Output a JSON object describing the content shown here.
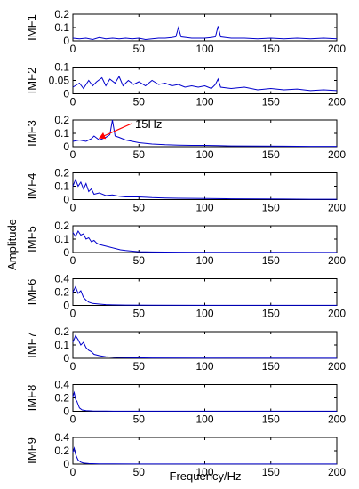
{
  "chart_data": {
    "type": "line",
    "xlabel": "Frequency/Hz",
    "ylabel": "Amplitude",
    "xlim": [
      0,
      200
    ],
    "x_ticks": [
      "0",
      "50",
      "100",
      "150",
      "200"
    ],
    "line_color": "#0000cc",
    "annotation_color": "#ff0000",
    "annotation": {
      "text": "15Hz",
      "panel": "IMF3",
      "x": 15,
      "y": 0.05
    },
    "panels": [
      {
        "name": "IMF1",
        "ylim": [
          0,
          0.2
        ],
        "yticks": [
          "0.2",
          "0.1",
          "0"
        ],
        "series": [
          [
            0,
            0.02
          ],
          [
            5,
            0.015
          ],
          [
            10,
            0.02
          ],
          [
            15,
            0.01
          ],
          [
            20,
            0.025
          ],
          [
            25,
            0.015
          ],
          [
            30,
            0.02
          ],
          [
            35,
            0.015
          ],
          [
            40,
            0.02
          ],
          [
            45,
            0.015
          ],
          [
            50,
            0.02
          ],
          [
            55,
            0.01
          ],
          [
            60,
            0.015
          ],
          [
            65,
            0.02
          ],
          [
            70,
            0.02
          ],
          [
            75,
            0.025
          ],
          [
            78,
            0.03
          ],
          [
            80,
            0.1
          ],
          [
            82,
            0.03
          ],
          [
            90,
            0.02
          ],
          [
            100,
            0.02
          ],
          [
            105,
            0.025
          ],
          [
            108,
            0.03
          ],
          [
            110,
            0.11
          ],
          [
            112,
            0.03
          ],
          [
            120,
            0.02
          ],
          [
            130,
            0.02
          ],
          [
            140,
            0.015
          ],
          [
            150,
            0.02
          ],
          [
            160,
            0.015
          ],
          [
            170,
            0.02
          ],
          [
            180,
            0.015
          ],
          [
            190,
            0.02
          ],
          [
            200,
            0.015
          ]
        ]
      },
      {
        "name": "IMF2",
        "ylim": [
          0,
          0.1
        ],
        "yticks": [
          "0.1",
          "0.05",
          "0"
        ],
        "series": [
          [
            0,
            0.025
          ],
          [
            5,
            0.04
          ],
          [
            8,
            0.02
          ],
          [
            12,
            0.05
          ],
          [
            15,
            0.03
          ],
          [
            18,
            0.045
          ],
          [
            22,
            0.06
          ],
          [
            25,
            0.03
          ],
          [
            28,
            0.055
          ],
          [
            32,
            0.04
          ],
          [
            35,
            0.065
          ],
          [
            38,
            0.03
          ],
          [
            42,
            0.05
          ],
          [
            46,
            0.035
          ],
          [
            50,
            0.045
          ],
          [
            55,
            0.03
          ],
          [
            60,
            0.05
          ],
          [
            65,
            0.035
          ],
          [
            70,
            0.04
          ],
          [
            75,
            0.03
          ],
          [
            80,
            0.035
          ],
          [
            85,
            0.025
          ],
          [
            90,
            0.03
          ],
          [
            95,
            0.025
          ],
          [
            100,
            0.03
          ],
          [
            105,
            0.02
          ],
          [
            108,
            0.035
          ],
          [
            110,
            0.055
          ],
          [
            112,
            0.025
          ],
          [
            120,
            0.02
          ],
          [
            130,
            0.025
          ],
          [
            140,
            0.015
          ],
          [
            150,
            0.02
          ],
          [
            160,
            0.015
          ],
          [
            170,
            0.018
          ],
          [
            180,
            0.012
          ],
          [
            190,
            0.015
          ],
          [
            200,
            0.012
          ]
        ]
      },
      {
        "name": "IMF3",
        "ylim": [
          0,
          0.2
        ],
        "yticks": [
          "0.2",
          "0.1",
          "0"
        ],
        "series": [
          [
            0,
            0.04
          ],
          [
            5,
            0.05
          ],
          [
            10,
            0.04
          ],
          [
            14,
            0.06
          ],
          [
            16,
            0.08
          ],
          [
            20,
            0.05
          ],
          [
            25,
            0.07
          ],
          [
            28,
            0.09
          ],
          [
            30,
            0.2
          ],
          [
            32,
            0.08
          ],
          [
            35,
            0.07
          ],
          [
            40,
            0.05
          ],
          [
            45,
            0.04
          ],
          [
            50,
            0.03
          ],
          [
            55,
            0.025
          ],
          [
            60,
            0.02
          ],
          [
            70,
            0.015
          ],
          [
            80,
            0.012
          ],
          [
            90,
            0.01
          ],
          [
            100,
            0.01
          ],
          [
            110,
            0.008
          ],
          [
            120,
            0.006
          ],
          [
            140,
            0.005
          ],
          [
            160,
            0.004
          ],
          [
            180,
            0.003
          ],
          [
            200,
            0.003
          ]
        ]
      },
      {
        "name": "IMF4",
        "ylim": [
          0,
          0.2
        ],
        "yticks": [
          "0.2",
          "0.1",
          "0"
        ],
        "series": [
          [
            0,
            0.1
          ],
          [
            2,
            0.15
          ],
          [
            4,
            0.1
          ],
          [
            6,
            0.13
          ],
          [
            8,
            0.08
          ],
          [
            10,
            0.12
          ],
          [
            12,
            0.06
          ],
          [
            14,
            0.08
          ],
          [
            16,
            0.04
          ],
          [
            20,
            0.05
          ],
          [
            25,
            0.03
          ],
          [
            30,
            0.035
          ],
          [
            35,
            0.025
          ],
          [
            40,
            0.02
          ],
          [
            50,
            0.02
          ],
          [
            60,
            0.015
          ],
          [
            70,
            0.012
          ],
          [
            80,
            0.01
          ],
          [
            100,
            0.008
          ],
          [
            120,
            0.006
          ],
          [
            140,
            0.005
          ],
          [
            160,
            0.004
          ],
          [
            180,
            0.003
          ],
          [
            200,
            0.003
          ]
        ]
      },
      {
        "name": "IMF5",
        "ylim": [
          0,
          0.2
        ],
        "yticks": [
          "0.2",
          "0.1",
          "0"
        ],
        "series": [
          [
            0,
            0.15
          ],
          [
            2,
            0.12
          ],
          [
            4,
            0.16
          ],
          [
            6,
            0.13
          ],
          [
            8,
            0.14
          ],
          [
            10,
            0.1
          ],
          [
            12,
            0.11
          ],
          [
            14,
            0.08
          ],
          [
            16,
            0.09
          ],
          [
            18,
            0.07
          ],
          [
            20,
            0.06
          ],
          [
            24,
            0.05
          ],
          [
            28,
            0.04
          ],
          [
            32,
            0.03
          ],
          [
            36,
            0.02
          ],
          [
            40,
            0.015
          ],
          [
            45,
            0.01
          ],
          [
            50,
            0.006
          ],
          [
            60,
            0.004
          ],
          [
            80,
            0.003
          ],
          [
            100,
            0.002
          ],
          [
            150,
            0.002
          ],
          [
            200,
            0.001
          ]
        ]
      },
      {
        "name": "IMF6",
        "ylim": [
          0,
          0.4
        ],
        "yticks": [
          "0.4",
          "0.2",
          "0"
        ],
        "series": [
          [
            0,
            0.2
          ],
          [
            2,
            0.28
          ],
          [
            4,
            0.18
          ],
          [
            6,
            0.22
          ],
          [
            8,
            0.12
          ],
          [
            10,
            0.08
          ],
          [
            12,
            0.05
          ],
          [
            15,
            0.03
          ],
          [
            20,
            0.02
          ],
          [
            25,
            0.012
          ],
          [
            30,
            0.008
          ],
          [
            40,
            0.005
          ],
          [
            60,
            0.003
          ],
          [
            100,
            0.002
          ],
          [
            200,
            0.001
          ]
        ]
      },
      {
        "name": "IMF7",
        "ylim": [
          0,
          0.2
        ],
        "yticks": [
          "0.2",
          "0.1",
          "0"
        ],
        "series": [
          [
            0,
            0.12
          ],
          [
            2,
            0.17
          ],
          [
            4,
            0.14
          ],
          [
            6,
            0.1
          ],
          [
            8,
            0.12
          ],
          [
            10,
            0.08
          ],
          [
            12,
            0.06
          ],
          [
            14,
            0.05
          ],
          [
            16,
            0.03
          ],
          [
            20,
            0.02
          ],
          [
            25,
            0.012
          ],
          [
            30,
            0.008
          ],
          [
            40,
            0.005
          ],
          [
            60,
            0.003
          ],
          [
            100,
            0.002
          ],
          [
            200,
            0.001
          ]
        ]
      },
      {
        "name": "IMF8",
        "ylim": [
          0,
          0.4
        ],
        "yticks": [
          "0.4",
          "0.2",
          "0"
        ],
        "series": [
          [
            0,
            0.22
          ],
          [
            1,
            0.28
          ],
          [
            2,
            0.18
          ],
          [
            3,
            0.15
          ],
          [
            4,
            0.1
          ],
          [
            5,
            0.05
          ],
          [
            7,
            0.02
          ],
          [
            10,
            0.01
          ],
          [
            15,
            0.005
          ],
          [
            25,
            0.003
          ],
          [
            50,
            0.002
          ],
          [
            100,
            0.001
          ],
          [
            200,
            0.001
          ]
        ]
      },
      {
        "name": "IMF9",
        "ylim": [
          0,
          0.4
        ],
        "yticks": [
          "0.4",
          "0.2",
          "0"
        ],
        "series": [
          [
            0,
            0.18
          ],
          [
            1,
            0.24
          ],
          [
            2,
            0.15
          ],
          [
            3,
            0.1
          ],
          [
            4,
            0.06
          ],
          [
            6,
            0.03
          ],
          [
            8,
            0.015
          ],
          [
            12,
            0.008
          ],
          [
            20,
            0.004
          ],
          [
            50,
            0.002
          ],
          [
            100,
            0.001
          ],
          [
            200,
            0.001
          ]
        ]
      }
    ]
  }
}
